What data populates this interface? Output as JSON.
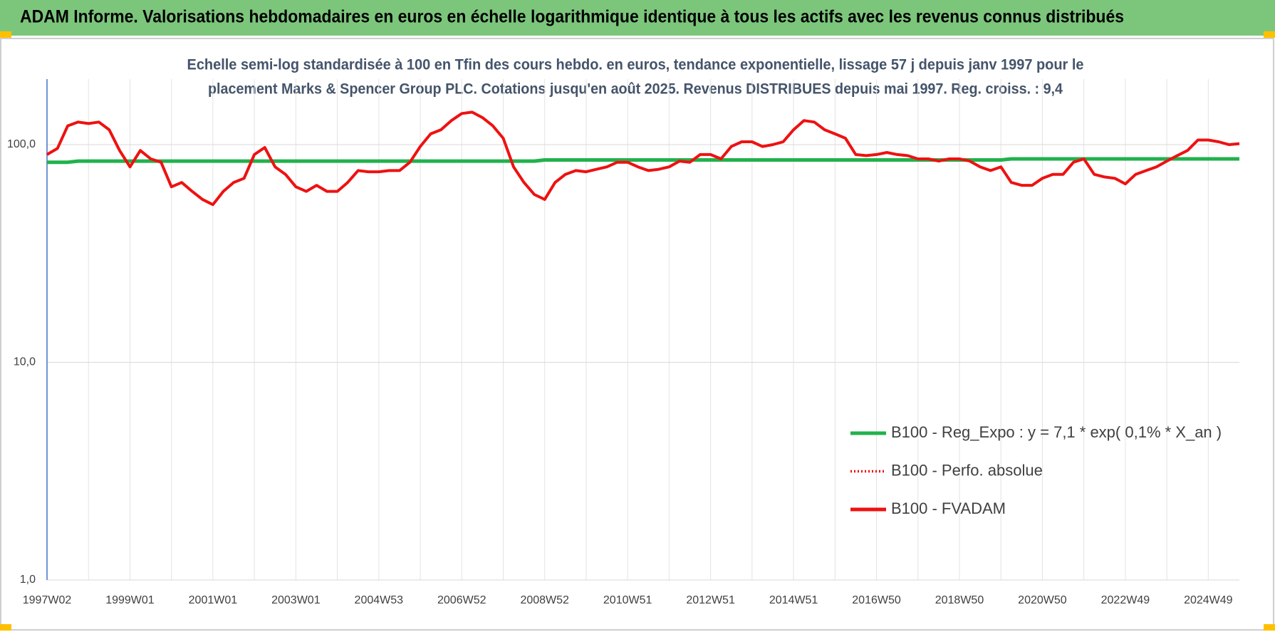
{
  "chart_data": {
    "type": "line",
    "title": "ADAM Informe. Valorisations hebdomadaires en euros en échelle logarithmique identique à tous les actifs avec les revenus connus distribués",
    "subtitle": [
      "Echelle semi-log standardisée à 100 en Tfin des cours hebdo. en euros, tendance exponentielle, lissage 57 j depuis janv 1997 pour le",
      "placement Marks & Spencer Group PLC. Cotations jusqu'en août 2025. Revenus DISTRIBUES depuis mai 1997. Reg. croiss. : 9,4"
    ],
    "log_scale": true,
    "grid": true,
    "legend_position": "lower right",
    "ylim": [
      1,
      200
    ],
    "yticks": [
      {
        "value": 1,
        "label": "1,0"
      },
      {
        "value": 10,
        "label": "10,0"
      },
      {
        "value": 100,
        "label": "100,0"
      }
    ],
    "categories": [
      "1997W02",
      null,
      null,
      null,
      null,
      null,
      null,
      null,
      "1999W01",
      null,
      null,
      null,
      null,
      null,
      null,
      null,
      "2001W01",
      null,
      null,
      null,
      null,
      null,
      null,
      null,
      "2003W01",
      null,
      null,
      null,
      null,
      null,
      null,
      null,
      "2004W53",
      null,
      null,
      null,
      null,
      null,
      null,
      null,
      "2006W52",
      null,
      null,
      null,
      null,
      null,
      null,
      null,
      "2008W52",
      null,
      null,
      null,
      null,
      null,
      null,
      null,
      "2010W51",
      null,
      null,
      null,
      null,
      null,
      null,
      null,
      "2012W51",
      null,
      null,
      null,
      null,
      null,
      null,
      null,
      "2014W51",
      null,
      null,
      null,
      null,
      null,
      null,
      null,
      "2016W50",
      null,
      null,
      null,
      null,
      null,
      null,
      null,
      "2018W50",
      null,
      null,
      null,
      null,
      null,
      null,
      null,
      "2020W50",
      null,
      null,
      null,
      null,
      null,
      null,
      null,
      "2022W49",
      null,
      null,
      null,
      null,
      null,
      null,
      null,
      "2024W49",
      null,
      null,
      null
    ],
    "series": [
      {
        "name": "B100 - Reg_Expo : y = 7,1 * exp( 0,1% *  X_an )",
        "color": "#22b14c",
        "line_style": "solid",
        "values": [
          83,
          83,
          83,
          84,
          84,
          84,
          84,
          84,
          84,
          84,
          84,
          84,
          84,
          84,
          84,
          84,
          84,
          84,
          84,
          84,
          84,
          84,
          84,
          84,
          84,
          84,
          84,
          84,
          84,
          84,
          84,
          84,
          84,
          84,
          84,
          84,
          84,
          84,
          84,
          84,
          84,
          84,
          84,
          84,
          84,
          84,
          84,
          84,
          85,
          85,
          85,
          85,
          85,
          85,
          85,
          85,
          85,
          85,
          85,
          85,
          85,
          85,
          85,
          85,
          85,
          85,
          85,
          85,
          85,
          85,
          85,
          85,
          85,
          85,
          85,
          85,
          85,
          85,
          85,
          85,
          85,
          85,
          85,
          85,
          85,
          85,
          85,
          85,
          85,
          85,
          85,
          85,
          85,
          86,
          86,
          86,
          86,
          86,
          86,
          86,
          86,
          86,
          86,
          86,
          86,
          86,
          86,
          86,
          86,
          86,
          86,
          86,
          86,
          86,
          86,
          86
        ]
      },
      {
        "name": "B100 - Perfo. absolue",
        "color": "#ee1111",
        "line_style": "dotted",
        "values": [
          90,
          96,
          122,
          127,
          125,
          127,
          117,
          94,
          79,
          94,
          86,
          83,
          64,
          67,
          61,
          56,
          53,
          61,
          67,
          70,
          90,
          97,
          79,
          73,
          64,
          61,
          65,
          61,
          61,
          67,
          76,
          75,
          75,
          76,
          76,
          83,
          98,
          112,
          117,
          129,
          139,
          141,
          133,
          122,
          107,
          79,
          67,
          59,
          56,
          67,
          73,
          76,
          75,
          77,
          79,
          83,
          83,
          79,
          76,
          77,
          79,
          84,
          83,
          90,
          90,
          86,
          98,
          103,
          103,
          98,
          100,
          103,
          117,
          129,
          127,
          117,
          112,
          107,
          90,
          89,
          90,
          92,
          90,
          89,
          86,
          86,
          84,
          86,
          86,
          84,
          79,
          76,
          79,
          67,
          65,
          65,
          70,
          73,
          73,
          83,
          86,
          73,
          71,
          70,
          66,
          73,
          76,
          79,
          84,
          89,
          94,
          105,
          105,
          103,
          100,
          101
        ]
      },
      {
        "name": "B100 - FVADAM",
        "color": "#ee1111",
        "line_style": "solid",
        "values": [
          90,
          96,
          122,
          127,
          125,
          127,
          117,
          94,
          79,
          94,
          86,
          83,
          64,
          67,
          61,
          56,
          53,
          61,
          67,
          70,
          90,
          97,
          79,
          73,
          64,
          61,
          65,
          61,
          61,
          67,
          76,
          75,
          75,
          76,
          76,
          83,
          98,
          112,
          117,
          129,
          139,
          141,
          133,
          122,
          107,
          79,
          67,
          59,
          56,
          67,
          73,
          76,
          75,
          77,
          79,
          83,
          83,
          79,
          76,
          77,
          79,
          84,
          83,
          90,
          90,
          86,
          98,
          103,
          103,
          98,
          100,
          103,
          117,
          129,
          127,
          117,
          112,
          107,
          90,
          89,
          90,
          92,
          90,
          89,
          86,
          86,
          84,
          86,
          86,
          84,
          79,
          76,
          79,
          67,
          65,
          65,
          70,
          73,
          73,
          83,
          86,
          73,
          71,
          70,
          66,
          73,
          76,
          79,
          84,
          89,
          94,
          105,
          105,
          103,
          100,
          101
        ]
      }
    ]
  }
}
